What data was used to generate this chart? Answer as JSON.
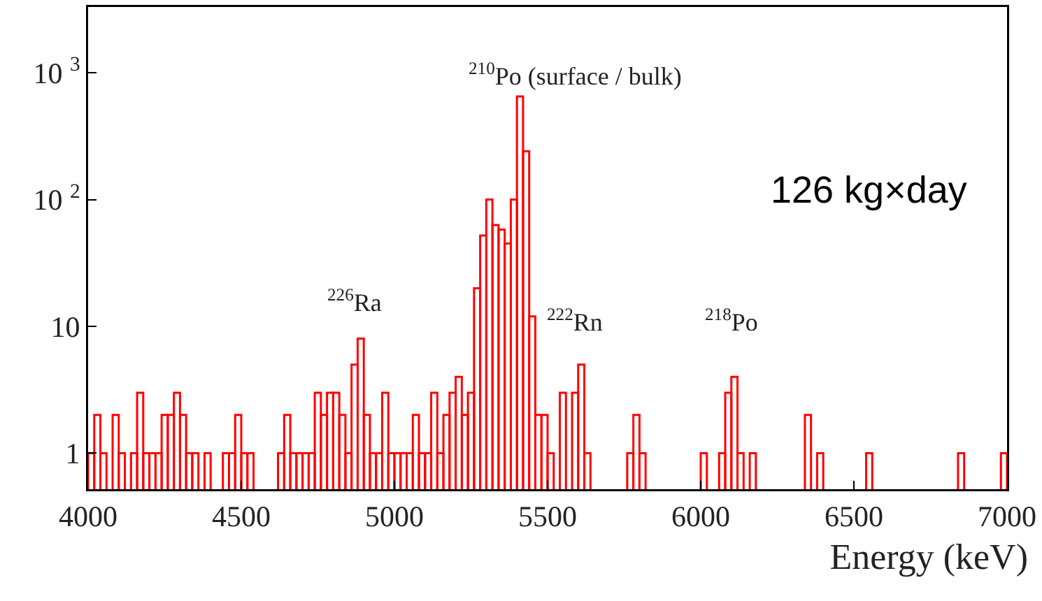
{
  "chart_data": {
    "type": "histogram",
    "xlabel": "Energy (keV)",
    "color": "#ff0000",
    "log": "y",
    "grid": false,
    "xlim": [
      4000,
      7000
    ],
    "xticks": [
      4000,
      4500,
      5000,
      5500,
      6000,
      6500,
      7000
    ],
    "ylim": [
      0.52,
      3300
    ],
    "yticks": [
      1,
      10,
      {
        "value": 100,
        "label": "10 $^{2}$"
      },
      {
        "value": 1000,
        "label": "10 $^{3}$"
      }
    ],
    "bins": [
      4000,
      4020,
      4040,
      4060,
      4080,
      4100,
      4120,
      4140,
      4160,
      4180,
      4200,
      4220,
      4240,
      4260,
      4280,
      4300,
      4320,
      4340,
      4360,
      4380,
      4400,
      4420,
      4440,
      4460,
      4480,
      4500,
      4520,
      4540,
      4560,
      4580,
      4600,
      4620,
      4640,
      4660,
      4680,
      4700,
      4720,
      4740,
      4760,
      4780,
      4800,
      4820,
      4840,
      4860,
      4880,
      4900,
      4920,
      4940,
      4960,
      4980,
      5000,
      5020,
      5040,
      5060,
      5080,
      5100,
      5120,
      5140,
      5160,
      5180,
      5200,
      5220,
      5240,
      5260,
      5280,
      5300,
      5320,
      5340,
      5360,
      5380,
      5400,
      5420,
      5440,
      5460,
      5480,
      5500,
      5520,
      5540,
      5560,
      5580,
      5600,
      5620,
      5640,
      5660,
      5680,
      5700,
      5720,
      5740,
      5760,
      5780,
      5800,
      5820,
      5840,
      5860,
      5880,
      5900,
      5920,
      5940,
      5960,
      5980,
      6000,
      6020,
      6040,
      6060,
      6080,
      6100,
      6120,
      6140,
      6160,
      6180,
      6200,
      6220,
      6240,
      6260,
      6280,
      6300,
      6320,
      6340,
      6360,
      6380,
      6400,
      6420,
      6440,
      6460,
      6480,
      6500,
      6520,
      6540,
      6560,
      6580,
      6600,
      6620,
      6640,
      6660,
      6680,
      6700,
      6720,
      6740,
      6760,
      6780,
      6800,
      6820,
      6840,
      6860,
      6880,
      6900,
      6920,
      6940,
      6960,
      6980,
      7000
    ],
    "values": [
      1,
      2,
      1,
      null,
      2,
      1,
      null,
      1,
      3,
      1,
      1,
      1,
      2,
      2,
      3,
      2,
      1,
      1,
      null,
      1,
      null,
      null,
      1,
      1,
      2,
      1,
      1,
      null,
      null,
      null,
      null,
      1,
      2,
      1,
      1,
      1,
      1,
      3,
      2,
      3,
      3,
      2,
      1,
      5,
      8,
      2,
      1,
      1,
      3,
      1,
      1,
      1,
      1,
      2,
      1,
      1,
      3,
      1,
      2,
      3,
      4,
      2,
      3,
      20,
      52,
      100,
      63,
      58,
      45,
      100,
      650,
      240,
      12,
      2,
      2,
      1,
      null,
      3,
      null,
      3,
      5,
      1,
      null,
      null,
      null,
      null,
      null,
      null,
      1,
      2,
      1,
      null,
      null,
      null,
      null,
      null,
      null,
      null,
      null,
      null,
      1,
      null,
      null,
      1,
      3,
      4,
      1,
      null,
      1,
      null,
      null,
      null,
      null,
      null,
      null,
      null,
      null,
      2,
      null,
      1,
      null,
      null,
      null,
      null,
      null,
      null,
      null,
      1,
      null,
      null,
      null,
      null,
      null,
      null,
      null,
      null,
      null,
      null,
      null,
      null,
      null,
      null,
      1,
      null,
      null,
      null,
      null,
      null,
      null,
      1
    ],
    "annotations": [
      "$^{210}$Po (surface / bulk)",
      "$^{226}$Ra",
      "$^{222}$Rn",
      "$^{218}$Po",
      "126 kg×day"
    ]
  }
}
